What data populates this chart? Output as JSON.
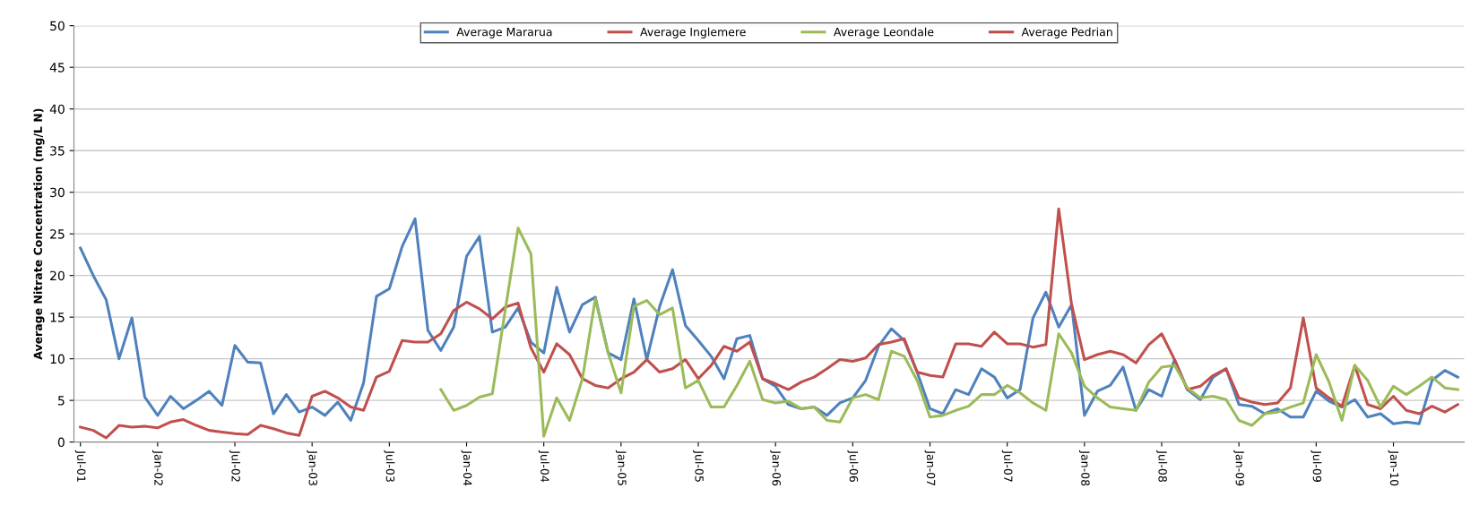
{
  "chart_data": {
    "type": "line",
    "ylabel": "Average Nitrate Concentration (mg/L N)",
    "categories": [
      "Jul-01",
      null,
      null,
      null,
      null,
      null,
      "Jan-02",
      null,
      null,
      null,
      null,
      null,
      "Jul-02",
      null,
      null,
      null,
      null,
      null,
      "Jan-03",
      null,
      null,
      null,
      null,
      null,
      "Jul-03",
      null,
      null,
      null,
      null,
      null,
      "Jan-04",
      null,
      null,
      null,
      null,
      null,
      "Jul-04",
      null,
      null,
      null,
      null,
      null,
      "Jan-05",
      null,
      null,
      null,
      null,
      null,
      "Jul-05",
      null,
      null,
      null,
      null,
      null,
      "Jan-06",
      null,
      null,
      null,
      null,
      null,
      "Jul-06",
      null,
      null,
      null,
      null,
      null,
      "Jan-07",
      null,
      null,
      null,
      null,
      null,
      "Jul-07",
      null,
      null,
      null,
      null,
      null,
      "Jan-08",
      null,
      null,
      null,
      null,
      null,
      "Jul-08",
      null,
      null,
      null,
      null,
      null,
      "Jan-09",
      null,
      null,
      null,
      null,
      null,
      "Jul-09",
      null,
      null,
      null,
      null,
      null,
      "Jan-10",
      null,
      null,
      null,
      null,
      null
    ],
    "series": [
      {
        "name": "Average Mararua",
        "color": "#4f81bd",
        "values": [
          23.3,
          20,
          17.1,
          10,
          14.9,
          5.4,
          3.2,
          5.5,
          4,
          5,
          6.1,
          4.4,
          11.6,
          9.6,
          9.5,
          3.4,
          5.7,
          3.6,
          4.2,
          3.2,
          4.8,
          2.6,
          7.1,
          17.5,
          18.4,
          23.5,
          26.8,
          13.4,
          11,
          13.8,
          22.3,
          24.7,
          13.2,
          13.8,
          16.1,
          12,
          10.7,
          18.6,
          13.2,
          16.5,
          17.4,
          10.7,
          9.9,
          17.2,
          9.9,
          16.3,
          20.7,
          14,
          12.2,
          10.3,
          7.6,
          12.4,
          12.8,
          7.6,
          6.7,
          4.5,
          4,
          4.2,
          3.2,
          4.7,
          5.3,
          7.4,
          11.5,
          13.6,
          12.2,
          8.4,
          4,
          3.4,
          6.3,
          5.7,
          8.8,
          7.8,
          5.3,
          6.3,
          14.9,
          18,
          13.8,
          16.5,
          3.2,
          6.1,
          6.8,
          9,
          3.8,
          6.3,
          5.5,
          9.9,
          6.3,
          5.1,
          7.8,
          8.8,
          4.5,
          4.3,
          3.4,
          4,
          3,
          3,
          6.1,
          4.9,
          4.2,
          5.1,
          3,
          3.4,
          2.2,
          2.4,
          2.2,
          7.4,
          8.6,
          7.8
        ]
      },
      {
        "name": "Average Inglemere",
        "color": "#c0504d",
        "values": [
          1.8,
          1.4,
          0.5,
          2,
          1.8,
          1.9,
          1.7,
          2.4,
          2.7,
          2,
          1.4,
          1.2,
          1,
          0.9,
          2,
          1.6,
          1.1,
          0.8,
          5.5,
          6.1,
          5.3,
          4.2,
          3.8,
          7.8,
          8.5,
          12.2,
          12,
          12,
          13,
          15.8,
          16.8,
          16,
          14.8,
          16.2,
          16.7,
          11.3,
          8.4,
          11.8,
          10.5,
          7.6,
          6.8,
          6.5,
          7.6,
          8.4,
          9.9,
          8.4,
          8.8,
          9.9,
          7.6,
          9.2,
          11.5,
          10.9,
          12,
          7.6,
          7,
          6.3,
          7.2,
          7.8,
          8.8,
          9.9,
          9.7,
          10.1,
          11.7,
          12,
          12.4,
          8.4,
          8,
          7.8,
          11.8,
          11.8,
          11.5,
          13.2,
          11.8,
          11.8,
          11.4,
          11.7,
          28,
          16.5,
          9.9,
          10.5,
          10.9,
          10.5,
          9.5,
          11.7,
          13,
          9.9,
          6.3,
          6.7,
          8,
          8.8,
          5.3,
          4.8,
          4.5,
          4.7,
          6.5,
          14.9,
          6.5,
          5.3,
          4.3,
          9.2,
          4.5,
          4,
          5.5,
          3.8,
          3.4,
          4.3,
          3.6,
          4.5
        ]
      },
      {
        "name": "Average Leondale",
        "color": "#9bbb59",
        "values": [
          null,
          null,
          null,
          null,
          null,
          null,
          null,
          null,
          null,
          null,
          null,
          null,
          null,
          null,
          null,
          null,
          null,
          null,
          null,
          null,
          null,
          null,
          null,
          null,
          null,
          null,
          null,
          null,
          6.3,
          3.8,
          4.4,
          5.4,
          5.8,
          15.8,
          25.7,
          22.6,
          0.7,
          5.3,
          2.6,
          7.6,
          17.2,
          10.7,
          5.9,
          16.3,
          17,
          15.3,
          16.1,
          6.5,
          7.4,
          4.2,
          4.2,
          6.8,
          9.7,
          5.1,
          4.7,
          4.9,
          4,
          4.2,
          2.6,
          2.4,
          5.3,
          5.7,
          5.1,
          10.9,
          10.3,
          7.4,
          3,
          3.2,
          3.8,
          4.3,
          5.7,
          5.7,
          6.8,
          5.9,
          4.7,
          3.8,
          13,
          10.7,
          6.7,
          5.3,
          4.2,
          4,
          3.8,
          7.2,
          9,
          9.2,
          6.5,
          5.3,
          5.5,
          5.1,
          2.6,
          2,
          3.4,
          3.6,
          4.2,
          4.7,
          10.5,
          7.2,
          2.6,
          9.2,
          7.4,
          4.2,
          6.7,
          5.7,
          6.7,
          7.8,
          6.5,
          6.3
        ]
      },
      {
        "name": "Average Pedrian",
        "color": "#be4b48",
        "values": [
          null,
          null,
          null,
          null,
          null,
          null,
          null,
          null,
          null,
          null,
          null,
          null,
          null,
          null,
          null,
          null,
          null,
          null,
          null,
          null,
          null,
          null,
          null,
          null,
          null,
          null,
          null,
          null,
          null,
          null,
          null,
          null,
          null,
          null,
          null,
          null,
          null,
          null,
          null,
          null,
          null,
          null,
          null,
          null,
          null,
          null,
          null,
          null,
          null,
          null,
          null,
          null,
          null,
          null,
          null,
          null,
          null,
          null,
          null,
          null,
          null,
          null,
          null,
          null,
          null,
          null,
          null,
          null,
          null,
          null,
          null,
          null,
          null,
          null,
          null,
          null,
          null,
          null,
          null,
          null,
          null,
          null,
          null,
          null,
          null,
          null,
          null,
          null,
          null,
          null,
          null,
          null,
          null,
          null,
          null,
          null,
          null,
          null,
          null,
          null,
          null,
          null,
          null,
          null,
          null,
          null,
          null,
          null
        ]
      }
    ],
    "ylim": [
      0,
      50
    ],
    "yticks": [
      0,
      5,
      10,
      15,
      20,
      25,
      30,
      35,
      40,
      45,
      50
    ],
    "grid": "y",
    "legend": "top",
    "marker": "none",
    "line_style": "solid"
  }
}
